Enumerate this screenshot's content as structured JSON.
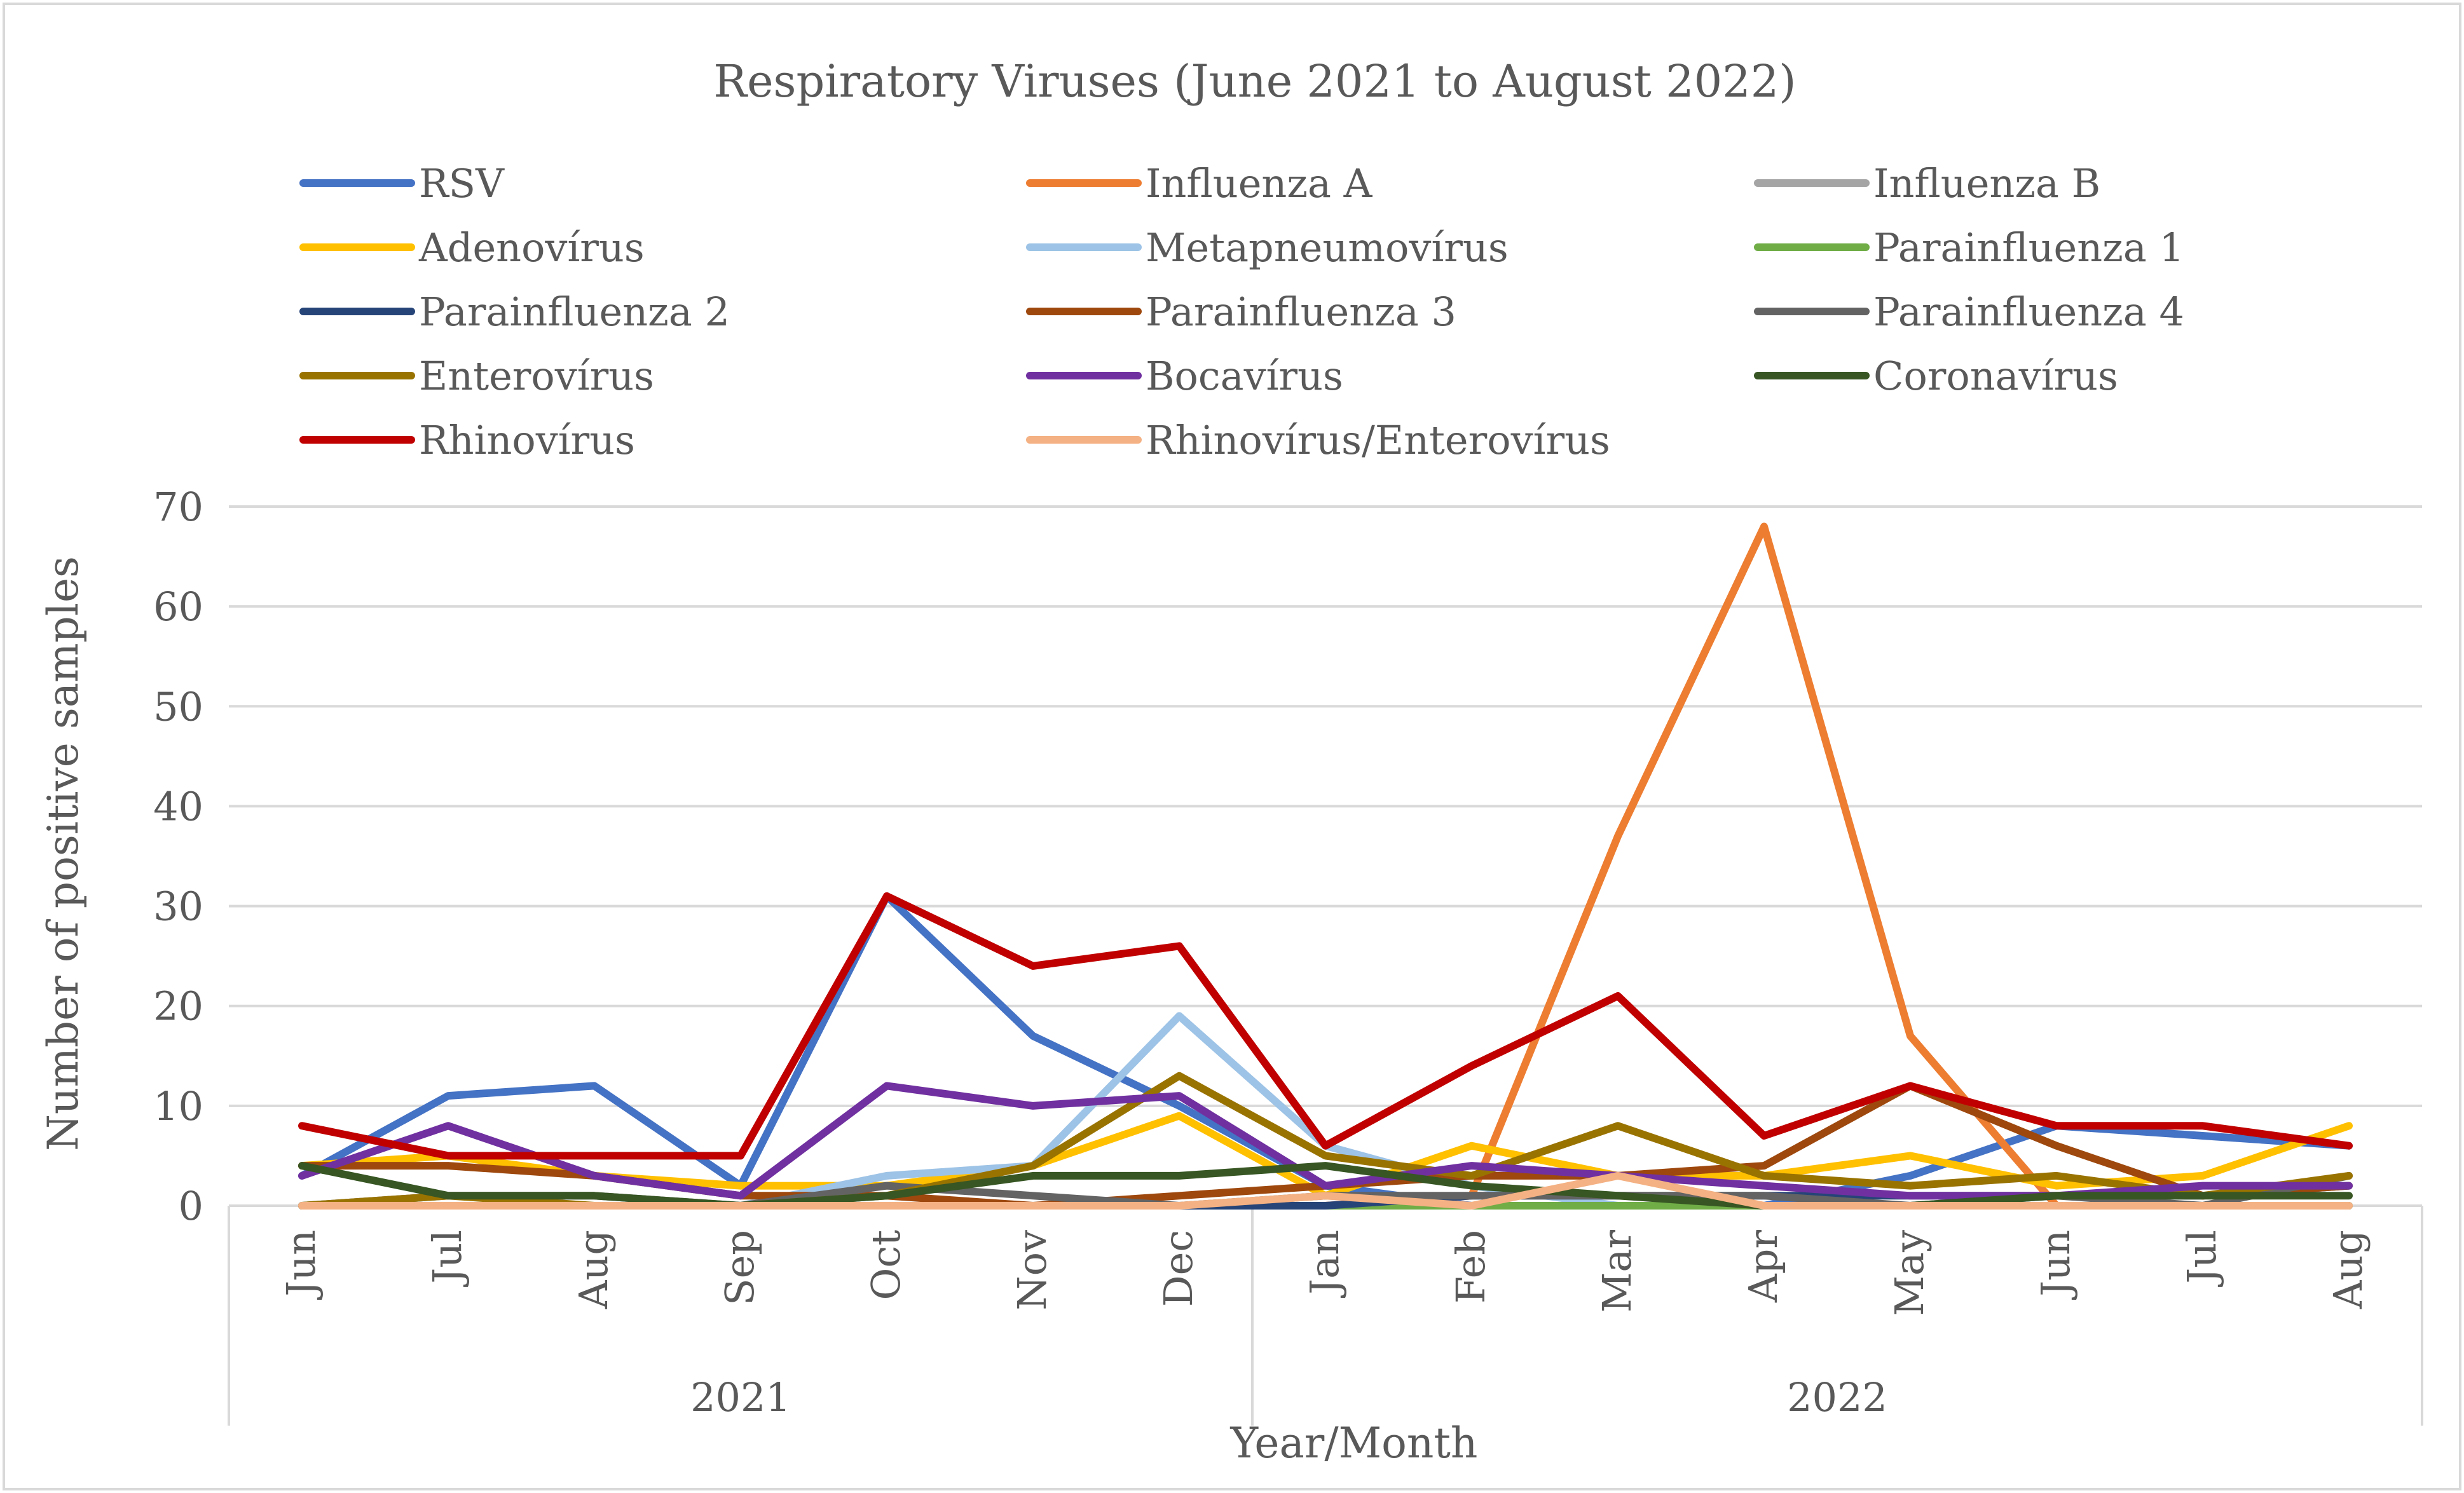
{
  "chart_data": {
    "type": "line",
    "title": "Respiratory Viruses (June 2021 to August 2022)",
    "xlabel": "Year/Month",
    "ylabel": "Number of positive samples",
    "ylim": [
      0,
      70
    ],
    "yticks": [
      0,
      10,
      20,
      30,
      40,
      50,
      60,
      70
    ],
    "grid": true,
    "legend_position": "top",
    "categories": [
      "Jun",
      "Jul",
      "Aug",
      "Sep",
      "Oct",
      "Nov",
      "Dec",
      "Jan",
      "Feb",
      "Mar",
      "Apr",
      "May",
      "Jun",
      "Jul",
      "Aug"
    ],
    "groups": [
      {
        "label": "2021",
        "count": 7
      },
      {
        "label": "2022",
        "count": 8
      }
    ],
    "series": [
      {
        "name": "RSV",
        "color": "#4472C4",
        "values": [
          3,
          11,
          12,
          2,
          31,
          17,
          10,
          2,
          0,
          0,
          0,
          3,
          8,
          7,
          6
        ]
      },
      {
        "name": "Influenza A",
        "color": "#ED7D31",
        "values": [
          0,
          0,
          0,
          0,
          0,
          0,
          0,
          0,
          1,
          37,
          68,
          17,
          0,
          0,
          0
        ]
      },
      {
        "name": "Influenza B",
        "color": "#A5A5A5",
        "values": [
          0,
          0,
          0,
          0,
          0,
          0,
          0,
          0,
          0,
          0,
          0,
          0,
          0,
          0,
          0
        ]
      },
      {
        "name": "Adenovírus",
        "color": "#FFC000",
        "values": [
          4,
          5,
          3,
          2,
          2,
          4,
          9,
          1,
          6,
          3,
          3,
          5,
          2,
          3,
          8
        ]
      },
      {
        "name": "Metapneumovírus",
        "color": "#9DC3E6",
        "values": [
          0,
          0,
          0,
          0,
          3,
          4,
          19,
          6,
          2,
          0,
          0,
          0,
          0,
          0,
          0
        ]
      },
      {
        "name": "Parainfluenza 1",
        "color": "#70AD47",
        "values": [
          0,
          0,
          0,
          0,
          0,
          0,
          0,
          0,
          0,
          0,
          0,
          0,
          0,
          0,
          0
        ]
      },
      {
        "name": "Parainfluenza 2",
        "color": "#264478",
        "values": [
          0,
          0,
          0,
          0,
          0,
          0,
          0,
          0,
          1,
          1,
          1,
          1,
          1,
          1,
          2
        ]
      },
      {
        "name": "Parainfluenza 3",
        "color": "#9E480E",
        "values": [
          4,
          4,
          3,
          1,
          1,
          0,
          1,
          2,
          3,
          3,
          4,
          12,
          6,
          1,
          2
        ]
      },
      {
        "name": "Parainfluenza 4",
        "color": "#636363",
        "values": [
          0,
          1,
          1,
          0,
          2,
          1,
          0,
          1,
          1,
          1,
          1,
          0,
          1,
          0,
          3
        ]
      },
      {
        "name": "Enterovírus",
        "color": "#997300",
        "values": [
          0,
          1,
          0,
          0,
          1,
          4,
          13,
          5,
          3,
          8,
          3,
          2,
          3,
          1,
          3
        ]
      },
      {
        "name": "Bocavírus",
        "color": "#7030A0",
        "values": [
          3,
          8,
          3,
          1,
          12,
          10,
          11,
          2,
          4,
          3,
          2,
          1,
          1,
          2,
          2
        ]
      },
      {
        "name": "Coronavírus",
        "color": "#375623",
        "values": [
          4,
          1,
          1,
          0,
          1,
          3,
          3,
          4,
          2,
          1,
          0,
          0,
          1,
          1,
          1
        ]
      },
      {
        "name": "Rhinovírus",
        "color": "#C00000",
        "values": [
          8,
          5,
          5,
          5,
          31,
          24,
          26,
          6,
          14,
          21,
          7,
          12,
          8,
          8,
          6
        ]
      },
      {
        "name": "Rhinovírus/Enterovírus",
        "color": "#F4B183",
        "values": [
          0,
          0,
          0,
          0,
          0,
          0,
          0,
          1,
          0,
          3,
          0,
          0,
          0,
          0,
          0
        ]
      }
    ]
  }
}
